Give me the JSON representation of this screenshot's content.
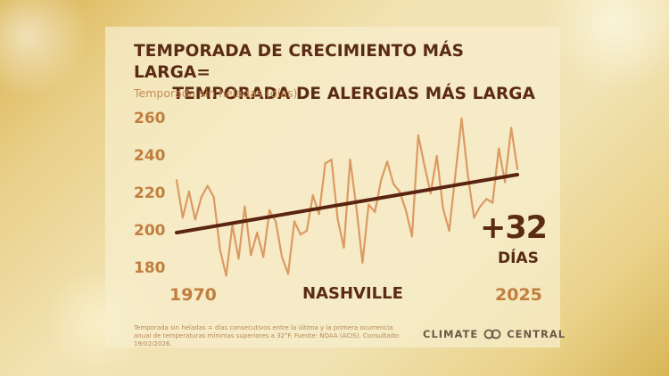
{
  "title_line1": "TEMPORADA DE CRECIMIENTO MÁS LARGA=",
  "title_line2": "TEMPORADA DE ALERGIAS MÁS LARGA",
  "location": "NASHVILLE",
  "change_value": "+32",
  "change_unit": "DÍAS",
  "footnote": "Temporada sin heladas = días consecutivos entre la última y la primera ocurrencia anual de temperaturas mínimas superiores a 32°F. Fuente: NOAA (ACIS). Consultado: 19/02/2026.",
  "logo": {
    "text_left": "CLIMATE",
    "text_right": "CENTRAL",
    "icon": "climate-central-rings-icon"
  },
  "colors": {
    "series": "#dc9a63",
    "trend": "#5a2410",
    "tick": "#c07f3f",
    "title": "#5a2a14"
  },
  "chart_data": {
    "type": "line",
    "title": "TEMPORADA DE CRECIMIENTO MÁS LARGA= TEMPORADA DE ALERGIAS MÁS LARGA",
    "ylabel": "Temporada sin heladas (días)",
    "xlabel": "",
    "x_ticks": [
      "1970",
      "2025"
    ],
    "y_ticks": [
      180,
      200,
      220,
      240,
      260
    ],
    "xlim": [
      1970,
      2025
    ],
    "ylim": [
      172,
      262
    ],
    "grid": false,
    "legend": "none",
    "series": [
      {
        "x": [
          1970,
          1971,
          1972,
          1973,
          1974,
          1975,
          1976,
          1977,
          1978,
          1979,
          1980,
          1981,
          1982,
          1983,
          1984,
          1985,
          1986,
          1987,
          1988,
          1989,
          1990,
          1991,
          1992,
          1993,
          1994,
          1995,
          1996,
          1997,
          1998,
          1999,
          2000,
          2001,
          2002,
          2003,
          2004,
          2005,
          2006,
          2007,
          2008,
          2009,
          2010,
          2011,
          2012,
          2013,
          2014,
          2015,
          2016,
          2017,
          2018,
          2019,
          2020,
          2021,
          2022,
          2023,
          2024,
          2025
        ],
        "values": [
          227,
          207,
          221,
          206,
          218,
          224,
          218,
          190,
          176,
          203,
          185,
          213,
          187,
          199,
          186,
          211,
          205,
          186,
          177,
          205,
          198,
          200,
          219,
          209,
          236,
          238,
          206,
          191,
          238,
          213,
          183,
          214,
          210,
          227,
          237,
          225,
          221,
          211,
          197,
          251,
          235,
          220,
          240,
          212,
          200,
          230,
          260,
          230,
          207,
          213,
          217,
          215,
          244,
          226,
          255,
          233
        ]
      }
    ],
    "trend": {
      "x": [
        1970,
        2025
      ],
      "values": [
        199,
        230
      ]
    },
    "annotation": "+32 DÍAS"
  }
}
